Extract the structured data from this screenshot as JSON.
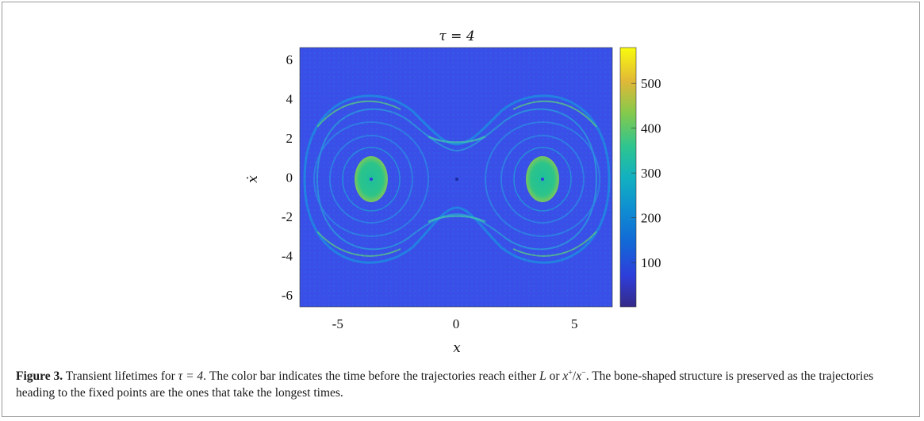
{
  "figure": {
    "title": "τ = 4",
    "xlabel": "x",
    "ylabel": "ẋ",
    "caption": {
      "label": "Figure 3.",
      "text_part1": "Transient lifetimes for",
      "tau_expr": "τ = 4",
      "text_part2": ". The color bar indicates the time before the trajectories reach either",
      "L": "L",
      "or": "or",
      "x_plus": "x",
      "plus": "+",
      "slash": "/",
      "x_minus": "x",
      "minus": "−",
      "text_part3": ". The bone-shaped structure is preserved as the trajectories heading to the fixed points are the ones that take the longest times."
    }
  },
  "chart_data": {
    "type": "heatmap",
    "title": "τ = 4",
    "xlabel": "x",
    "ylabel": "ẋ",
    "xlim": [
      -6.6,
      6.6
    ],
    "ylim": [
      -6.6,
      6.6
    ],
    "x_ticks": [
      "-5",
      "0",
      "5"
    ],
    "x_tick_values": [
      -5,
      0,
      5
    ],
    "y_ticks": [
      "6",
      "4",
      "2",
      "0",
      "-2",
      "-4",
      "-6"
    ],
    "y_tick_values": [
      6,
      4,
      2,
      0,
      -2,
      -4,
      -6
    ],
    "colorbar": {
      "range": [
        1,
        580
      ],
      "ticks": [
        "500",
        "400",
        "300",
        "200",
        "100"
      ],
      "tick_values": [
        500,
        400,
        300,
        200,
        100
      ],
      "colormap": "parula"
    },
    "background_level": 60,
    "structures": [
      {
        "name": "left fixed-point island",
        "center_x": -3.6,
        "center_y": 0,
        "value": 330
      },
      {
        "name": "right fixed-point island",
        "center_x": 3.6,
        "center_y": 0,
        "value": 330
      },
      {
        "name": "bone-shaped separatrix band",
        "value": 250
      }
    ],
    "grid": false
  }
}
